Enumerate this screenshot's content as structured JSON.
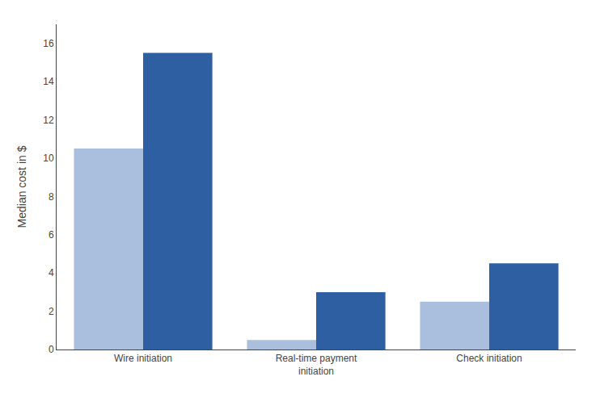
{
  "chart_data": {
    "type": "bar",
    "categories": [
      "Wire initiation",
      "Real-time payment\ninitiation",
      "Check initiation"
    ],
    "series": [
      {
        "color": "#aabfde",
        "values": [
          10.5,
          0.5,
          2.5
        ]
      },
      {
        "color": "#2e5fa3",
        "values": [
          15.5,
          3.0,
          4.5
        ]
      }
    ],
    "ylabel": "Median cost in $",
    "ylim": [
      0,
      17
    ],
    "yticks": [
      0,
      2,
      4,
      6,
      8,
      10,
      12,
      14,
      16
    ],
    "grid": false
  }
}
